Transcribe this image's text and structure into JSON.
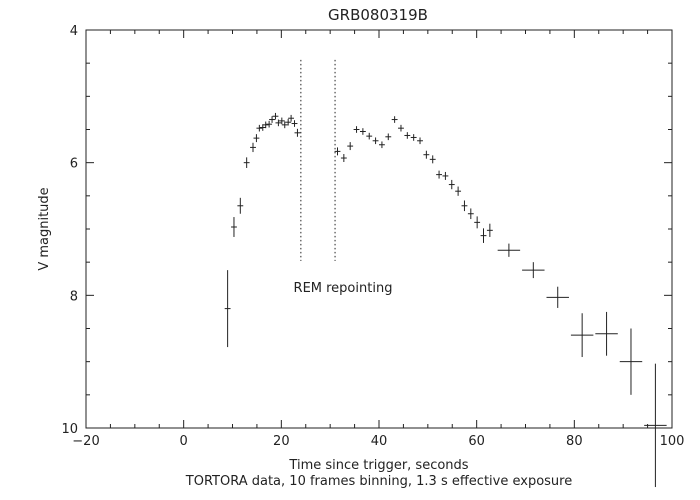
{
  "chart_data": {
    "type": "scatter",
    "title": "GRB080319B",
    "xlabel": "Time since trigger, seconds",
    "xlabel2": "TORTORA data, 10 frames binning, 1.3 s effective exposure",
    "ylabel": "V magnitude",
    "xlim": [
      -20,
      100
    ],
    "ylim": [
      10,
      4
    ],
    "y_inverted": true,
    "grid": false,
    "xticks": [
      -20,
      0,
      20,
      40,
      60,
      80,
      100
    ],
    "yticks": [
      4,
      6,
      8,
      10
    ],
    "x_tick_labels": [
      "−20",
      "0",
      "20",
      "40",
      "60",
      "80",
      "100"
    ],
    "y_tick_labels": [
      "4",
      "6",
      "8",
      "10"
    ],
    "annotation": {
      "text": "REM repointing",
      "x": 22.5,
      "y": 7.95
    },
    "gap_markers": {
      "x": [
        24,
        31
      ],
      "y_from": 4.45,
      "y_to": 7.48
    },
    "series": [
      {
        "x": [
          9.0,
          10.3,
          11.6,
          12.9,
          14.2,
          14.9,
          15.5,
          16.2,
          16.8,
          17.5,
          18.1,
          18.8,
          19.4,
          20.1,
          20.7,
          21.4,
          22.0,
          22.7,
          23.3,
          31.5,
          32.8,
          34.1,
          35.4,
          36.7,
          38.0,
          39.3,
          40.6,
          41.9,
          43.2,
          44.5,
          45.8,
          47.1,
          48.4,
          49.7,
          51.0,
          52.3,
          53.6,
          54.9,
          56.2,
          57.5,
          58.8,
          60.1,
          61.4,
          62.7,
          66.6,
          71.6,
          76.6,
          81.6,
          86.6,
          91.6,
          96.6
        ],
        "y": [
          8.2,
          6.97,
          6.65,
          6.0,
          5.77,
          5.63,
          5.48,
          5.47,
          5.43,
          5.42,
          5.35,
          5.3,
          5.4,
          5.37,
          5.43,
          5.39,
          5.33,
          5.41,
          5.55,
          5.83,
          5.93,
          5.75,
          5.5,
          5.53,
          5.6,
          5.67,
          5.73,
          5.61,
          5.35,
          5.48,
          5.59,
          5.62,
          5.67,
          5.88,
          5.95,
          6.18,
          6.2,
          6.33,
          6.43,
          6.65,
          6.77,
          6.9,
          7.1,
          7.02,
          7.32,
          7.62,
          8.03,
          8.6,
          8.58,
          9.0,
          9.96
        ],
        "xerr": [
          0.6,
          0.6,
          0.6,
          0.6,
          0.6,
          0.6,
          0.6,
          0.6,
          0.6,
          0.6,
          0.6,
          0.6,
          0.6,
          0.6,
          0.6,
          0.6,
          0.6,
          0.6,
          0.6,
          0.6,
          0.6,
          0.6,
          0.6,
          0.6,
          0.6,
          0.6,
          0.6,
          0.6,
          0.6,
          0.6,
          0.6,
          0.6,
          0.6,
          0.6,
          0.6,
          0.6,
          0.6,
          0.6,
          0.6,
          0.6,
          0.6,
          0.6,
          0.6,
          0.6,
          2.3,
          2.3,
          2.3,
          2.3,
          2.3,
          2.3,
          2.3
        ],
        "yerr": [
          0.58,
          0.15,
          0.12,
          0.08,
          0.07,
          0.06,
          0.05,
          0.05,
          0.05,
          0.05,
          0.05,
          0.05,
          0.05,
          0.05,
          0.05,
          0.05,
          0.05,
          0.05,
          0.06,
          0.06,
          0.06,
          0.06,
          0.05,
          0.05,
          0.05,
          0.05,
          0.05,
          0.05,
          0.05,
          0.05,
          0.05,
          0.05,
          0.05,
          0.06,
          0.06,
          0.06,
          0.06,
          0.07,
          0.07,
          0.08,
          0.08,
          0.09,
          0.11,
          0.1,
          0.1,
          0.12,
          0.16,
          0.33,
          0.33,
          0.5,
          0.93
        ]
      }
    ]
  }
}
